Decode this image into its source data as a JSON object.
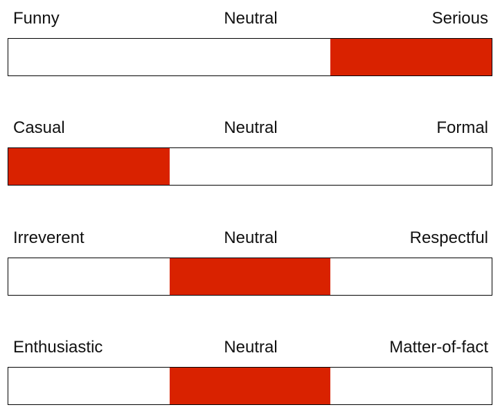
{
  "accent_color": "#d92200",
  "scales": [
    {
      "left_label": "Funny",
      "middle_label": "Neutral",
      "right_label": "Serious",
      "selected_segment": 3,
      "segment_count": 3
    },
    {
      "left_label": "Casual",
      "middle_label": "Neutral",
      "right_label": "Formal",
      "selected_segment": 1,
      "segment_count": 3
    },
    {
      "left_label": "Irreverent",
      "middle_label": "Neutral",
      "right_label": "Respectful",
      "selected_segment": 2,
      "segment_count": 3
    },
    {
      "left_label": "Enthusiastic",
      "middle_label": "Neutral",
      "right_label": "Matter-of-fact",
      "selected_segment": 2,
      "segment_count": 3
    }
  ]
}
